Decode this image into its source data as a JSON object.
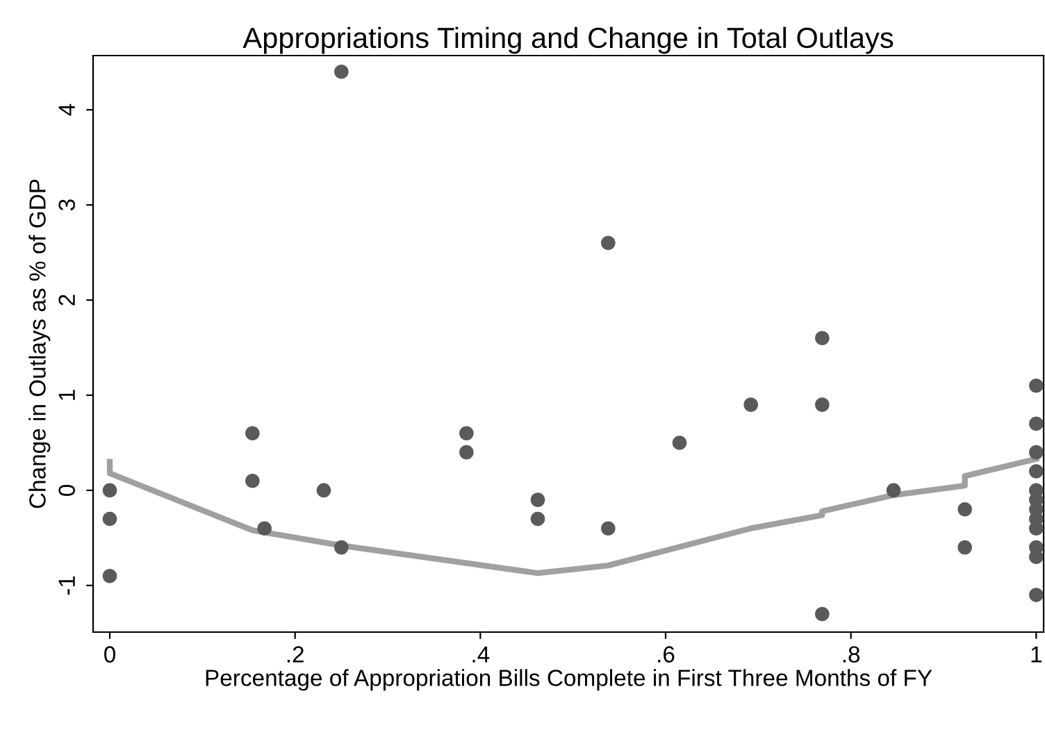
{
  "chart_data": {
    "type": "scatter",
    "title": "Appropriations Timing and Change in Total Outlays",
    "xlabel": "Percentage of Appropriation Bills Complete in First Three Months of FY",
    "ylabel": "Change in Outlays as % of GDP",
    "xlim": [
      -0.018,
      1.008
    ],
    "ylim": [
      -1.49,
      4.57
    ],
    "xticks": [
      0,
      {
        "value": 0.2,
        "label": ".2"
      },
      {
        "value": 0.4,
        "label": ".4"
      },
      {
        "value": 0.6,
        "label": ".6"
      },
      {
        "value": 0.8,
        "label": ".8"
      },
      1
    ],
    "yticks": [
      -1,
      0,
      1,
      2,
      3,
      4
    ],
    "grid": false,
    "legend": false,
    "marker": "circle",
    "series": [
      {
        "color": "#5a5a5a",
        "x": [
          0,
          0,
          0,
          0.154,
          0.154,
          0.167,
          0.231,
          0.25,
          0.25,
          0.385,
          0.385,
          0.462,
          0.462,
          0.538,
          0.538,
          0.615,
          0.692,
          0.769,
          0.769,
          0.769,
          0.846,
          0.923,
          0.923,
          1,
          1,
          1,
          1,
          1,
          1,
          1,
          1,
          1,
          1,
          1,
          1
        ],
        "values": [
          0,
          -0.3,
          -0.9,
          0.6,
          0.1,
          -0.4,
          0,
          4.4,
          -0.6,
          0.6,
          0.4,
          -0.1,
          -0.3,
          2.6,
          -0.4,
          0.5,
          0.9,
          1.6,
          0.9,
          -1.3,
          0,
          -0.2,
          -0.6,
          1.1,
          0.7,
          0.4,
          0.2,
          0,
          -0.1,
          -0.2,
          -0.3,
          -0.4,
          -0.6,
          -0.7,
          -1.1
        ]
      },
      {
        "type": "line",
        "color": "#a0a0a0",
        "line_style": "solid",
        "marker": "none",
        "x": [
          0,
          0,
          0.154,
          0.25,
          0.462,
          0.538,
          0.692,
          0.769,
          0.769,
          0.846,
          0.923,
          0.923,
          1
        ],
        "values": [
          0.3,
          0.18,
          -0.42,
          -0.58,
          -0.87,
          -0.79,
          -0.4,
          -0.26,
          -0.22,
          -0.05,
          0.05,
          0.15,
          0.33
        ]
      }
    ]
  }
}
